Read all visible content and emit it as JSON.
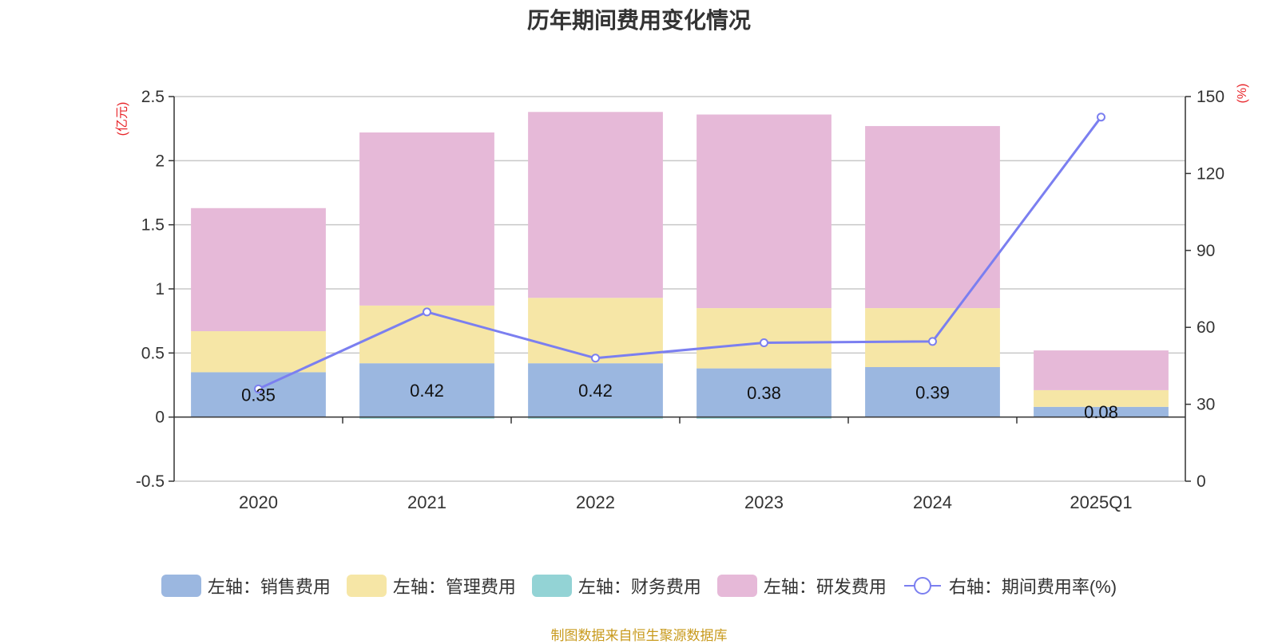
{
  "chart_data": {
    "type": "bar",
    "title": "历年期间费用变化情况",
    "categories": [
      "2020",
      "2021",
      "2022",
      "2023",
      "2024",
      "2025Q1"
    ],
    "left_axis": {
      "unit_label": "(亿元)",
      "ylim": [
        -0.5,
        2.5
      ],
      "ticks": [
        "-0.5",
        "0",
        "0.5",
        "1",
        "1.5",
        "2",
        "2.5"
      ],
      "tick_values": [
        -0.5,
        0,
        0.5,
        1,
        1.5,
        2,
        2.5
      ]
    },
    "right_axis": {
      "unit_label": "(%)",
      "ylim": [
        0,
        150
      ],
      "ticks": [
        "0",
        "30",
        "60",
        "90",
        "120",
        "150"
      ],
      "tick_values": [
        0,
        30,
        60,
        90,
        120,
        150
      ]
    },
    "series": [
      {
        "name": "左轴：销售费用",
        "axis": "left",
        "type": "bar",
        "color": "#9bb7e0",
        "values": [
          0.35,
          0.42,
          0.42,
          0.38,
          0.39,
          0.08
        ],
        "labels": [
          "0.35",
          "0.42",
          "0.42",
          "0.38",
          "0.39",
          "0.08"
        ]
      },
      {
        "name": "左轴：管理费用",
        "axis": "left",
        "type": "bar",
        "color": "#f6e6a6",
        "values": [
          0.32,
          0.45,
          0.51,
          0.47,
          0.46,
          0.13
        ]
      },
      {
        "name": "左轴：财务费用",
        "axis": "left",
        "type": "bar",
        "color": "#93d3d5",
        "values": [
          0.0,
          -0.01,
          -0.01,
          -0.01,
          0.0,
          0.0
        ]
      },
      {
        "name": "左轴：研发费用",
        "axis": "left",
        "type": "bar",
        "color": "#e6b9d8",
        "values": [
          0.96,
          1.35,
          1.45,
          1.51,
          1.42,
          0.31
        ]
      },
      {
        "name": "右轴：期间费用率(%)",
        "axis": "right",
        "type": "line",
        "color": "#7b7ff0",
        "values": [
          36,
          66,
          48,
          54,
          54.5,
          142
        ]
      }
    ]
  },
  "source_note": "制图数据来自恒生聚源数据库"
}
